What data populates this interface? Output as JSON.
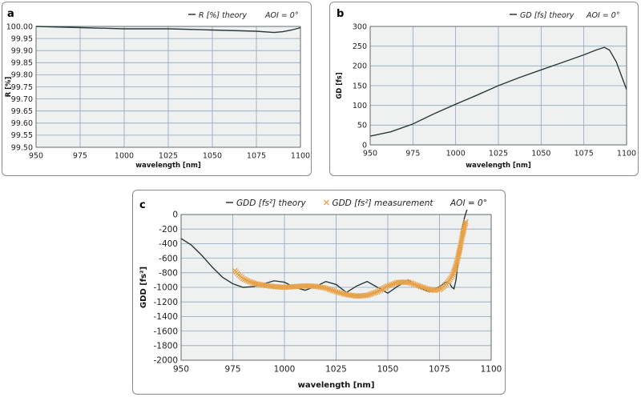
{
  "chart_data": [
    {
      "panel": "a",
      "type": "line",
      "xlabel": "wavelength [nm]",
      "ylabel": "R [%]",
      "xlim": [
        950,
        1100
      ],
      "ylim": [
        99.5,
        100.0
      ],
      "x_ticks": [
        "950",
        "975",
        "1000",
        "1025",
        "1050",
        "1075",
        "1100"
      ],
      "y_ticks": [
        "99.50",
        "99.55",
        "99.60",
        "99.65",
        "99.70",
        "99.75",
        "99.80",
        "99.85",
        "99.90",
        "99.95",
        "100.00"
      ],
      "grid": true,
      "legend_position": "top-right",
      "annotation": "AOI = 0°",
      "series": [
        {
          "name": "R [%] theory",
          "color": "#2a3a3a",
          "x": [
            950,
            975,
            1000,
            1025,
            1050,
            1075,
            1085,
            1090,
            1095,
            1100
          ],
          "y": [
            100.0,
            99.995,
            99.99,
            99.99,
            99.985,
            99.98,
            99.975,
            99.978,
            99.985,
            99.995
          ]
        }
      ]
    },
    {
      "panel": "b",
      "type": "line",
      "xlabel": "wavelength [nm]",
      "ylabel": "GD [fs]",
      "xlim": [
        950,
        1100
      ],
      "ylim": [
        0,
        300
      ],
      "x_ticks": [
        "950",
        "975",
        "1000",
        "1025",
        "1050",
        "1075",
        "1100"
      ],
      "y_ticks": [
        "0",
        "50",
        "100",
        "150",
        "200",
        "250",
        "300"
      ],
      "grid": true,
      "legend_position": "top-right",
      "annotation": "AOI = 0°",
      "series": [
        {
          "name": "GD [fs] theory",
          "color": "#2a3a3a",
          "x": [
            950,
            962,
            975,
            987,
            1000,
            1012,
            1025,
            1037,
            1050,
            1062,
            1075,
            1082,
            1087,
            1090,
            1094,
            1097,
            1100
          ],
          "y": [
            22,
            33,
            53,
            78,
            103,
            125,
            150,
            170,
            190,
            208,
            228,
            240,
            247,
            240,
            210,
            175,
            140
          ]
        }
      ]
    },
    {
      "panel": "c",
      "type": "line",
      "xlabel": "wavelength [nm]",
      "ylabel": "GDD [fs²]",
      "xlim": [
        950,
        1100
      ],
      "ylim": [
        -2000,
        0
      ],
      "x_ticks": [
        "950",
        "975",
        "1000",
        "1025",
        "1050",
        "1075",
        "1100"
      ],
      "y_ticks": [
        "0",
        "-200",
        "-400",
        "-600",
        "-800",
        "-1000",
        "-1200",
        "-1400",
        "-1600",
        "-1800",
        "-2000"
      ],
      "grid": true,
      "legend_position": "top",
      "annotation": "AOI = 0°",
      "series": [
        {
          "name": "GDD [fs²] theory",
          "color": "#2a3a3a",
          "marker": "none",
          "x": [
            950,
            955,
            960,
            965,
            970,
            975,
            980,
            985,
            990,
            995,
            1000,
            1005,
            1010,
            1015,
            1020,
            1025,
            1030,
            1035,
            1040,
            1045,
            1050,
            1055,
            1060,
            1065,
            1070,
            1075,
            1078,
            1080,
            1081,
            1082,
            1083,
            1084,
            1085,
            1086,
            1087,
            1088,
            1089
          ],
          "y": [
            -330,
            -420,
            -560,
            -720,
            -860,
            -950,
            -1000,
            -990,
            -950,
            -910,
            -930,
            -1000,
            -1040,
            -990,
            -920,
            -960,
            -1070,
            -980,
            -920,
            -1000,
            -1080,
            -980,
            -900,
            -1000,
            -1060,
            -990,
            -930,
            -950,
            -1000,
            -1020,
            -900,
            -650,
            -400,
            -200,
            -50,
            40,
            120
          ]
        },
        {
          "name": "GDD [fs²] measurement",
          "color": "#e8a24a",
          "marker": "x",
          "x": [
            976,
            978,
            980,
            983,
            986,
            990,
            995,
            1000,
            1005,
            1010,
            1015,
            1020,
            1025,
            1030,
            1035,
            1040,
            1045,
            1050,
            1055,
            1060,
            1065,
            1070,
            1073,
            1075,
            1077,
            1079,
            1081,
            1082,
            1083,
            1084,
            1085,
            1086,
            1087,
            1088
          ],
          "y": [
            -770,
            -830,
            -880,
            -920,
            -950,
            -970,
            -990,
            -1000,
            -990,
            -980,
            -985,
            -1010,
            -1060,
            -1100,
            -1120,
            -1110,
            -1060,
            -980,
            -930,
            -930,
            -980,
            -1030,
            -1040,
            -1030,
            -990,
            -930,
            -850,
            -780,
            -700,
            -580,
            -450,
            -300,
            -170,
            -80
          ]
        }
      ]
    }
  ]
}
